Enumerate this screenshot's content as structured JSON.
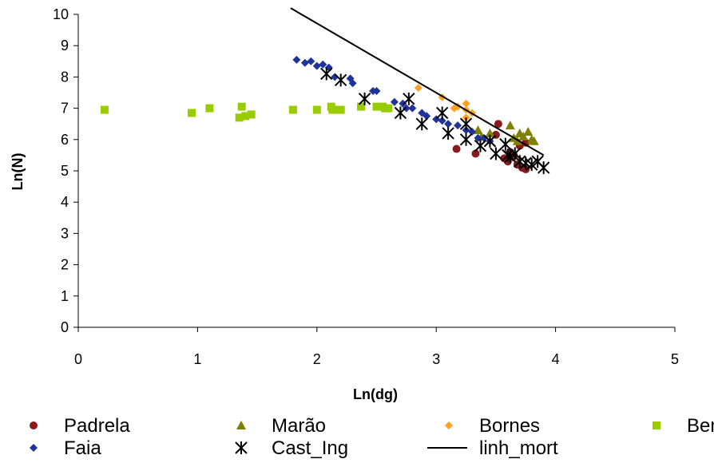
{
  "chart_data": {
    "type": "scatter",
    "xlabel": "Ln(dg)",
    "ylabel": "Ln(N)",
    "xlim": [
      0,
      5
    ],
    "ylim": [
      0,
      10
    ],
    "x_ticks": [
      "0",
      "1",
      "2",
      "3",
      "4",
      "5"
    ],
    "y_ticks": [
      "0",
      "1",
      "2",
      "3",
      "4",
      "5",
      "6",
      "7",
      "8",
      "9",
      "10"
    ],
    "grid": false,
    "legend_position": "bottom",
    "series": [
      {
        "name": "Padrela",
        "marker": "circle",
        "color": "#8B1A1A",
        "points": [
          [
            3.17,
            5.7
          ],
          [
            3.33,
            5.55
          ],
          [
            3.5,
            6.15
          ],
          [
            3.52,
            6.5
          ],
          [
            3.57,
            5.4
          ],
          [
            3.6,
            5.3
          ],
          [
            3.62,
            5.6
          ],
          [
            3.65,
            5.5
          ],
          [
            3.68,
            5.2
          ],
          [
            3.7,
            5.8
          ],
          [
            3.72,
            5.1
          ],
          [
            3.75,
            5.05
          ],
          [
            3.75,
            5.9
          ]
        ]
      },
      {
        "name": "Marão",
        "marker": "triangle",
        "color": "#808000",
        "points": [
          [
            3.35,
            6.3
          ],
          [
            3.38,
            6.1
          ],
          [
            3.45,
            6.2
          ],
          [
            3.62,
            6.45
          ],
          [
            3.65,
            6.05
          ],
          [
            3.68,
            5.95
          ],
          [
            3.7,
            6.2
          ],
          [
            3.73,
            6.1
          ],
          [
            3.77,
            6.25
          ],
          [
            3.8,
            6.0
          ],
          [
            3.82,
            5.95
          ]
        ]
      },
      {
        "name": "Bornes",
        "marker": "diamond",
        "color": "#FFA020",
        "points": [
          [
            2.85,
            7.65
          ],
          [
            3.05,
            7.35
          ],
          [
            3.15,
            7.0
          ],
          [
            3.18,
            7.05
          ],
          [
            3.25,
            7.15
          ],
          [
            3.25,
            6.95
          ],
          [
            3.25,
            6.7
          ],
          [
            3.3,
            6.85
          ]
        ]
      },
      {
        "name": "Bemposta",
        "marker": "square",
        "color": "#99CC00",
        "points": [
          [
            0.22,
            6.95
          ],
          [
            0.95,
            6.85
          ],
          [
            1.1,
            7.0
          ],
          [
            1.35,
            6.7
          ],
          [
            1.37,
            7.05
          ],
          [
            1.4,
            6.75
          ],
          [
            1.45,
            6.8
          ],
          [
            1.8,
            6.95
          ],
          [
            2.0,
            6.95
          ],
          [
            2.12,
            7.05
          ],
          [
            2.13,
            6.95
          ],
          [
            2.18,
            6.95
          ],
          [
            2.2,
            6.95
          ],
          [
            2.37,
            7.05
          ],
          [
            2.5,
            7.05
          ],
          [
            2.55,
            7.05
          ],
          [
            2.57,
            7.0
          ],
          [
            2.6,
            7.0
          ]
        ]
      },
      {
        "name": "Faia",
        "marker": "diamond",
        "color": "#1F3399",
        "points": [
          [
            1.83,
            8.55
          ],
          [
            1.9,
            8.45
          ],
          [
            1.95,
            8.5
          ],
          [
            2.0,
            8.35
          ],
          [
            2.05,
            8.4
          ],
          [
            2.1,
            8.3
          ],
          [
            2.15,
            8.0
          ],
          [
            2.28,
            7.95
          ],
          [
            2.3,
            7.8
          ],
          [
            2.47,
            7.55
          ],
          [
            2.5,
            7.55
          ],
          [
            2.65,
            7.2
          ],
          [
            2.72,
            7.15
          ],
          [
            2.75,
            7.0
          ],
          [
            2.8,
            7.0
          ],
          [
            2.88,
            6.85
          ],
          [
            2.92,
            6.75
          ],
          [
            3.0,
            6.65
          ],
          [
            3.05,
            6.6
          ],
          [
            3.1,
            6.5
          ],
          [
            3.18,
            6.45
          ],
          [
            3.25,
            6.3
          ],
          [
            3.3,
            6.25
          ],
          [
            3.35,
            6.05
          ],
          [
            3.4,
            6.05
          ],
          [
            3.45,
            5.95
          ]
        ]
      },
      {
        "name": "Cast_Ing",
        "marker": "star",
        "color": "#000000",
        "points": [
          [
            2.08,
            8.1
          ],
          [
            2.2,
            7.9
          ],
          [
            2.4,
            7.3
          ],
          [
            2.7,
            6.85
          ],
          [
            2.77,
            7.3
          ],
          [
            2.88,
            6.5
          ],
          [
            3.05,
            6.85
          ],
          [
            3.1,
            6.2
          ],
          [
            3.25,
            6.5
          ],
          [
            3.25,
            6.0
          ],
          [
            3.37,
            5.8
          ],
          [
            3.45,
            5.95
          ],
          [
            3.5,
            5.55
          ],
          [
            3.58,
            5.85
          ],
          [
            3.6,
            5.5
          ],
          [
            3.62,
            5.45
          ],
          [
            3.66,
            5.55
          ],
          [
            3.7,
            5.3
          ],
          [
            3.75,
            5.25
          ],
          [
            3.8,
            5.2
          ],
          [
            3.85,
            5.3
          ],
          [
            3.9,
            5.1
          ]
        ]
      },
      {
        "name": "linh_mort",
        "marker": "line",
        "color": "#000000",
        "points": [
          [
            1.78,
            10.2
          ],
          [
            3.9,
            5.5
          ]
        ]
      }
    ]
  }
}
